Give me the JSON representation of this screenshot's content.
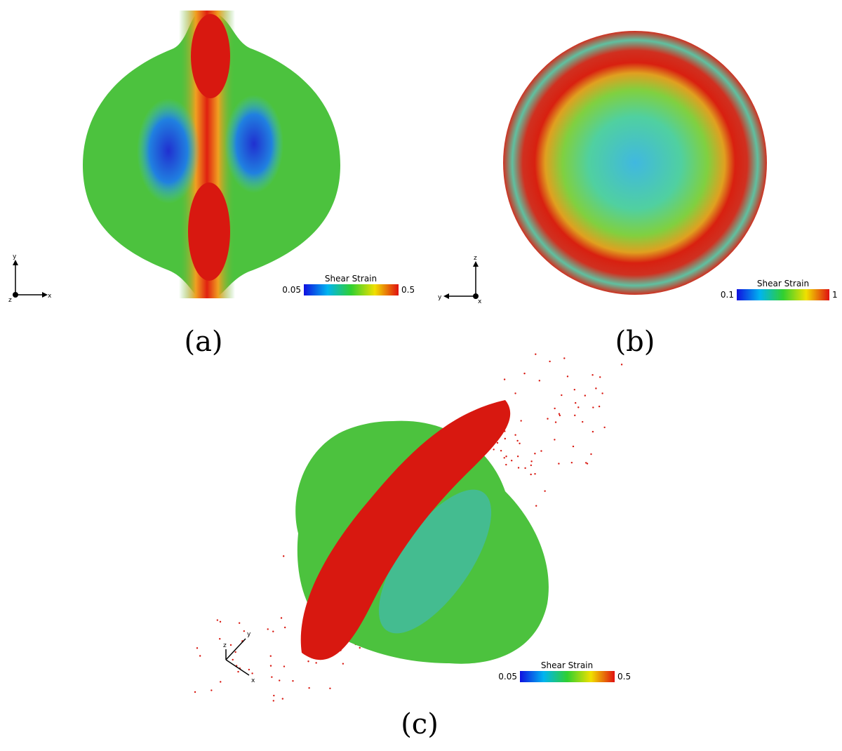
{
  "panels": [
    {
      "caption": "(a)",
      "colorbar": {
        "title": "Shear Strain",
        "min": "0.05",
        "max": "0.5"
      },
      "axes": {
        "up": "y",
        "depth": "z",
        "right": "x"
      }
    },
    {
      "caption": "(b)",
      "colorbar": {
        "title": "Shear Strain",
        "min": "0.1",
        "max": "1"
      },
      "axes": {
        "up": "z",
        "left": "y",
        "depth": "x"
      }
    },
    {
      "caption": "(c)",
      "colorbar": {
        "title": "Shear Strain",
        "min": "0.05",
        "max": "0.5"
      },
      "axes": {
        "up": "z",
        "diag": "y",
        "right": "x"
      }
    }
  ]
}
